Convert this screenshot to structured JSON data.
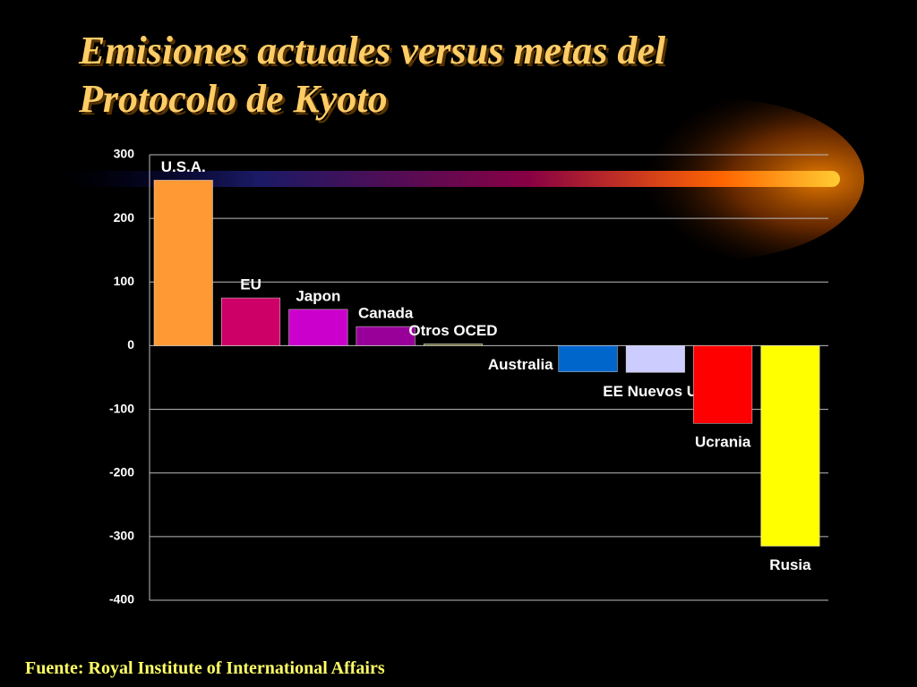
{
  "chart_data": {
    "type": "bar",
    "title": "Emisiones actuales versus metas del Protocolo de Kyoto",
    "source": "Fuente: Royal Institute of  International Affairs",
    "categories": [
      "U.S.A.",
      "EU",
      "Japon",
      "Canada",
      "Otros OCED",
      "Australia",
      null,
      "EE Nuevos UE",
      "Ucrania",
      "Rusia"
    ],
    "values": [
      260,
      75,
      57,
      30,
      3,
      0,
      -41,
      -42,
      -122,
      -315
    ],
    "colors": [
      "#ff9933",
      "#cc0066",
      "#cc00cc",
      "#990099",
      "#666633",
      "#888888",
      "#0066cc",
      "#ccccff",
      "#ff0000",
      "#ffff00"
    ],
    "ylim": [
      -400,
      300
    ],
    "yticks": [
      -400,
      -300,
      -200,
      -100,
      0,
      100,
      200,
      300
    ],
    "grid": true
  }
}
